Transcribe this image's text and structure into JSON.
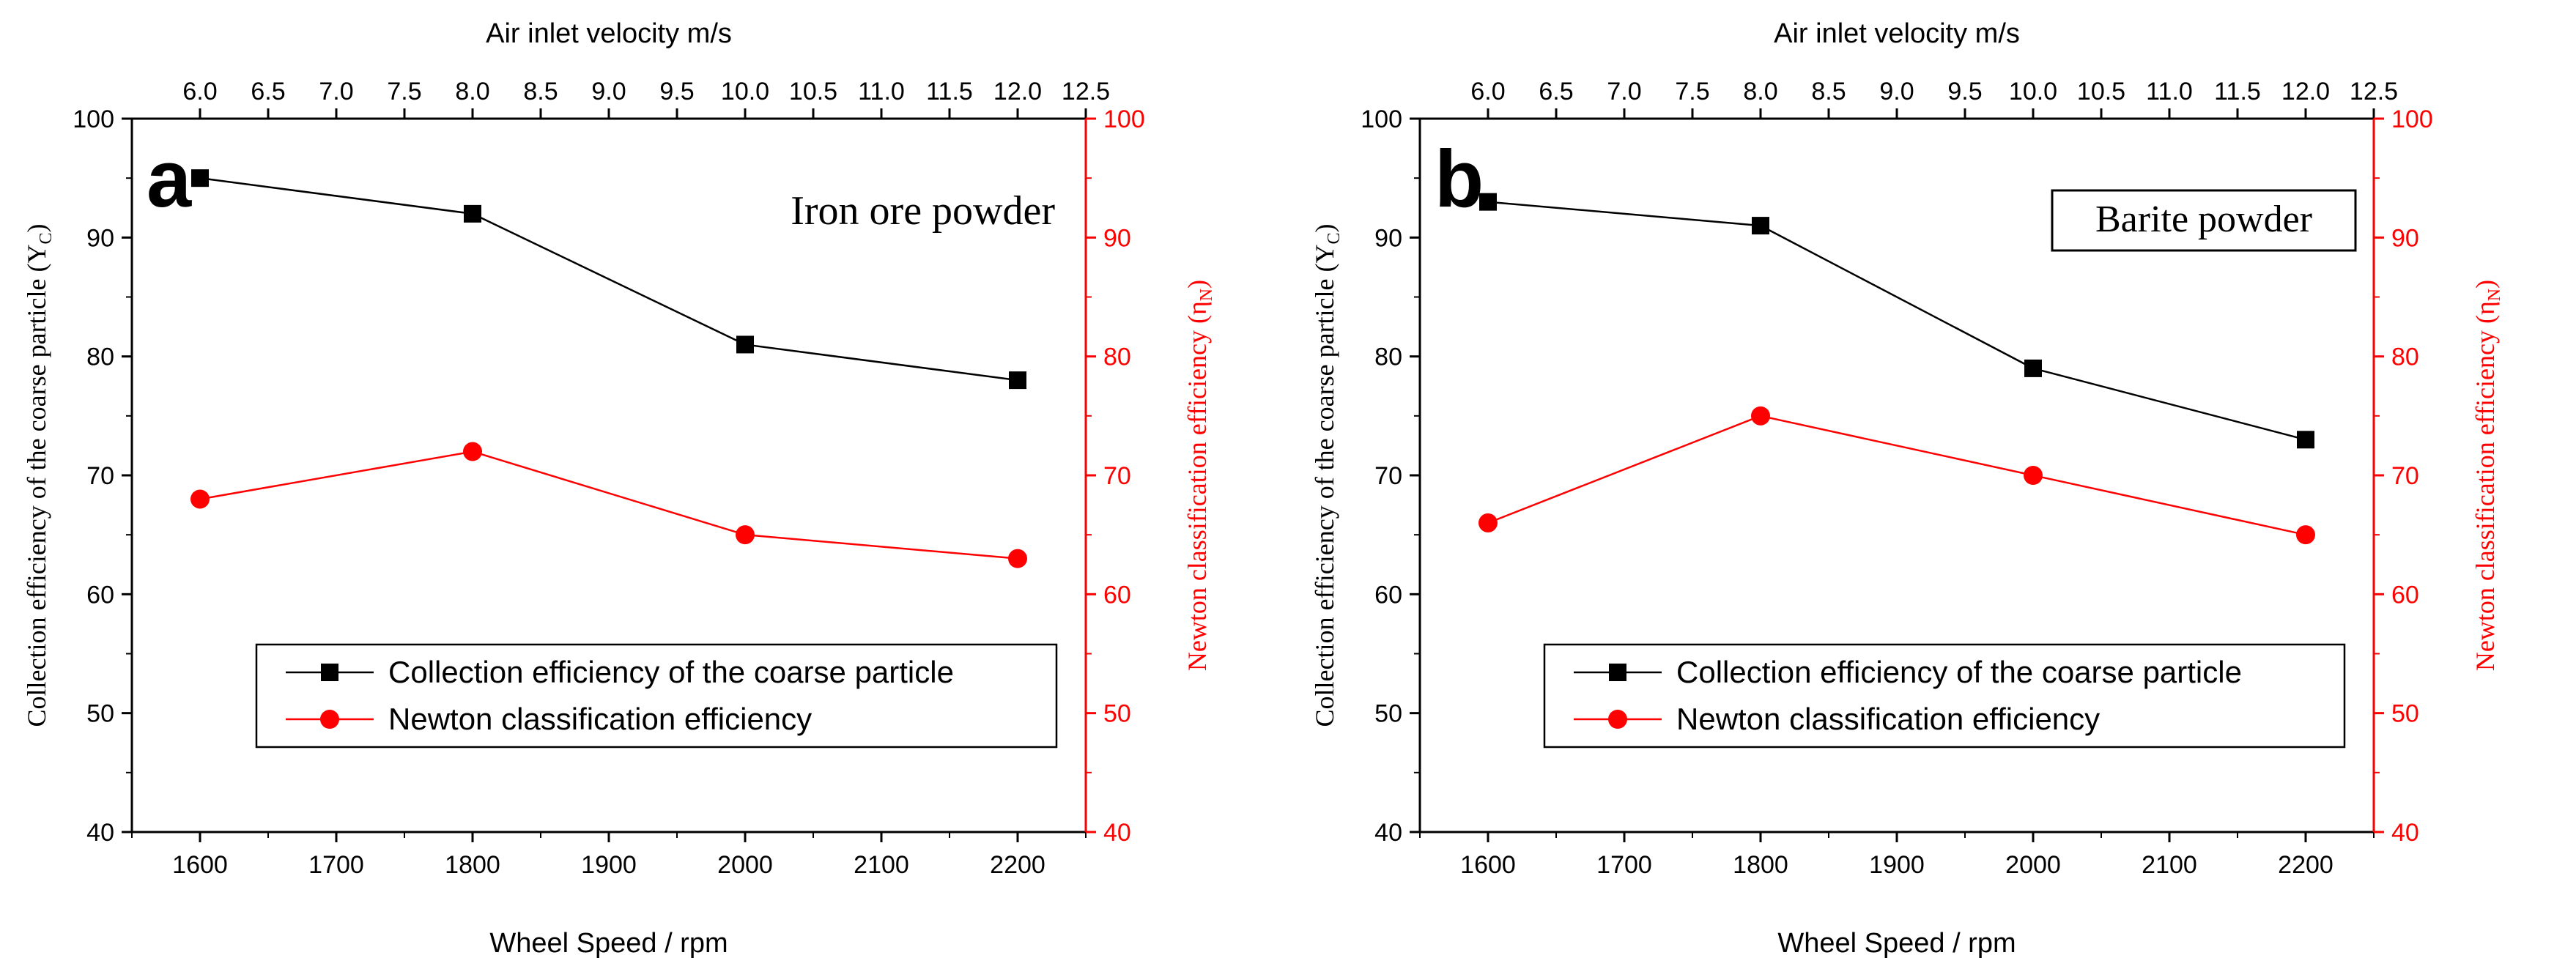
{
  "chart_data": [
    {
      "type": "line",
      "panel_label": "a",
      "annotation": "Iron ore powder",
      "annotation_boxed": false,
      "xlabel": "Wheel Speed / rpm",
      "x_top_label": "Air inlet velocity  m/s",
      "ylabel_left": "Collection efficiency of the coarse particle (Y",
      "ylabel_left_sub": "C",
      "ylabel_right": "Newton classification efficiency (η",
      "ylabel_right_sub": "N",
      "xlim": [
        1550,
        2250
      ],
      "ylim": [
        40,
        100
      ],
      "x_ticks": [
        "1600",
        "1700",
        "1800",
        "1900",
        "2000",
        "2100",
        "2200"
      ],
      "x_tick_values": [
        1600,
        1700,
        1800,
        1900,
        2000,
        2100,
        2200
      ],
      "y_ticks": [
        "40",
        "50",
        "60",
        "70",
        "80",
        "90",
        "100"
      ],
      "y_tick_values": [
        40,
        50,
        60,
        70,
        80,
        90,
        100
      ],
      "top_ticks": [
        "6.0",
        "6.5",
        "7.0",
        "7.5",
        "8.0",
        "8.5",
        "9.0",
        "9.5",
        "10.0",
        "10.5",
        "11.0",
        "11.5",
        "12.0",
        "12.5"
      ],
      "top_tick_values": [
        6.0,
        6.5,
        7.0,
        7.5,
        8.0,
        8.5,
        9.0,
        9.5,
        10.0,
        10.5,
        11.0,
        11.5,
        12.0,
        12.5
      ],
      "top_axis_map": {
        "v0": 6.0,
        "rpm0": 1600,
        "v1": 12.0,
        "rpm1": 2200
      },
      "x": [
        1600,
        1800,
        2000,
        2200
      ],
      "series": [
        {
          "name": "Collection efficiency of the coarse particle",
          "marker": "square",
          "color": "#000000",
          "values": [
            95,
            92,
            81,
            78
          ]
        },
        {
          "name": "Newton classification efficiency",
          "marker": "circle",
          "color": "#ff0000",
          "values": [
            68,
            72,
            65,
            63
          ]
        }
      ],
      "grid": false,
      "legend_position": "bottom-right"
    },
    {
      "type": "line",
      "panel_label": "b",
      "annotation": "Barite powder",
      "annotation_boxed": true,
      "xlabel": "Wheel Speed / rpm",
      "x_top_label": "Air inlet velocity  m/s",
      "ylabel_left": "Collection efficiency of the coarse particle (Y",
      "ylabel_left_sub": "C",
      "ylabel_right": "Newton classification efficiency (η",
      "ylabel_right_sub": "N",
      "xlim": [
        1550,
        2250
      ],
      "ylim": [
        40,
        100
      ],
      "x_ticks": [
        "1600",
        "1700",
        "1800",
        "1900",
        "2000",
        "2100",
        "2200"
      ],
      "x_tick_values": [
        1600,
        1700,
        1800,
        1900,
        2000,
        2100,
        2200
      ],
      "y_ticks": [
        "40",
        "50",
        "60",
        "70",
        "80",
        "90",
        "100"
      ],
      "y_tick_values": [
        40,
        50,
        60,
        70,
        80,
        90,
        100
      ],
      "top_ticks": [
        "6.0",
        "6.5",
        "7.0",
        "7.5",
        "8.0",
        "8.5",
        "9.0",
        "9.5",
        "10.0",
        "10.5",
        "11.0",
        "11.5",
        "12.0",
        "12.5"
      ],
      "top_tick_values": [
        6.0,
        6.5,
        7.0,
        7.5,
        8.0,
        8.5,
        9.0,
        9.5,
        10.0,
        10.5,
        11.0,
        11.5,
        12.0,
        12.5
      ],
      "top_axis_map": {
        "v0": 6.0,
        "rpm0": 1600,
        "v1": 12.0,
        "rpm1": 2200
      },
      "x": [
        1600,
        1800,
        2000,
        2200
      ],
      "series": [
        {
          "name": "Collection efficiency of the coarse particle",
          "marker": "square",
          "color": "#000000",
          "values": [
            93,
            91,
            79,
            73
          ]
        },
        {
          "name": "Newton classification efficiency",
          "marker": "circle",
          "color": "#ff0000",
          "values": [
            66,
            75,
            70,
            65
          ]
        }
      ],
      "grid": false,
      "legend_position": "bottom-right"
    }
  ]
}
